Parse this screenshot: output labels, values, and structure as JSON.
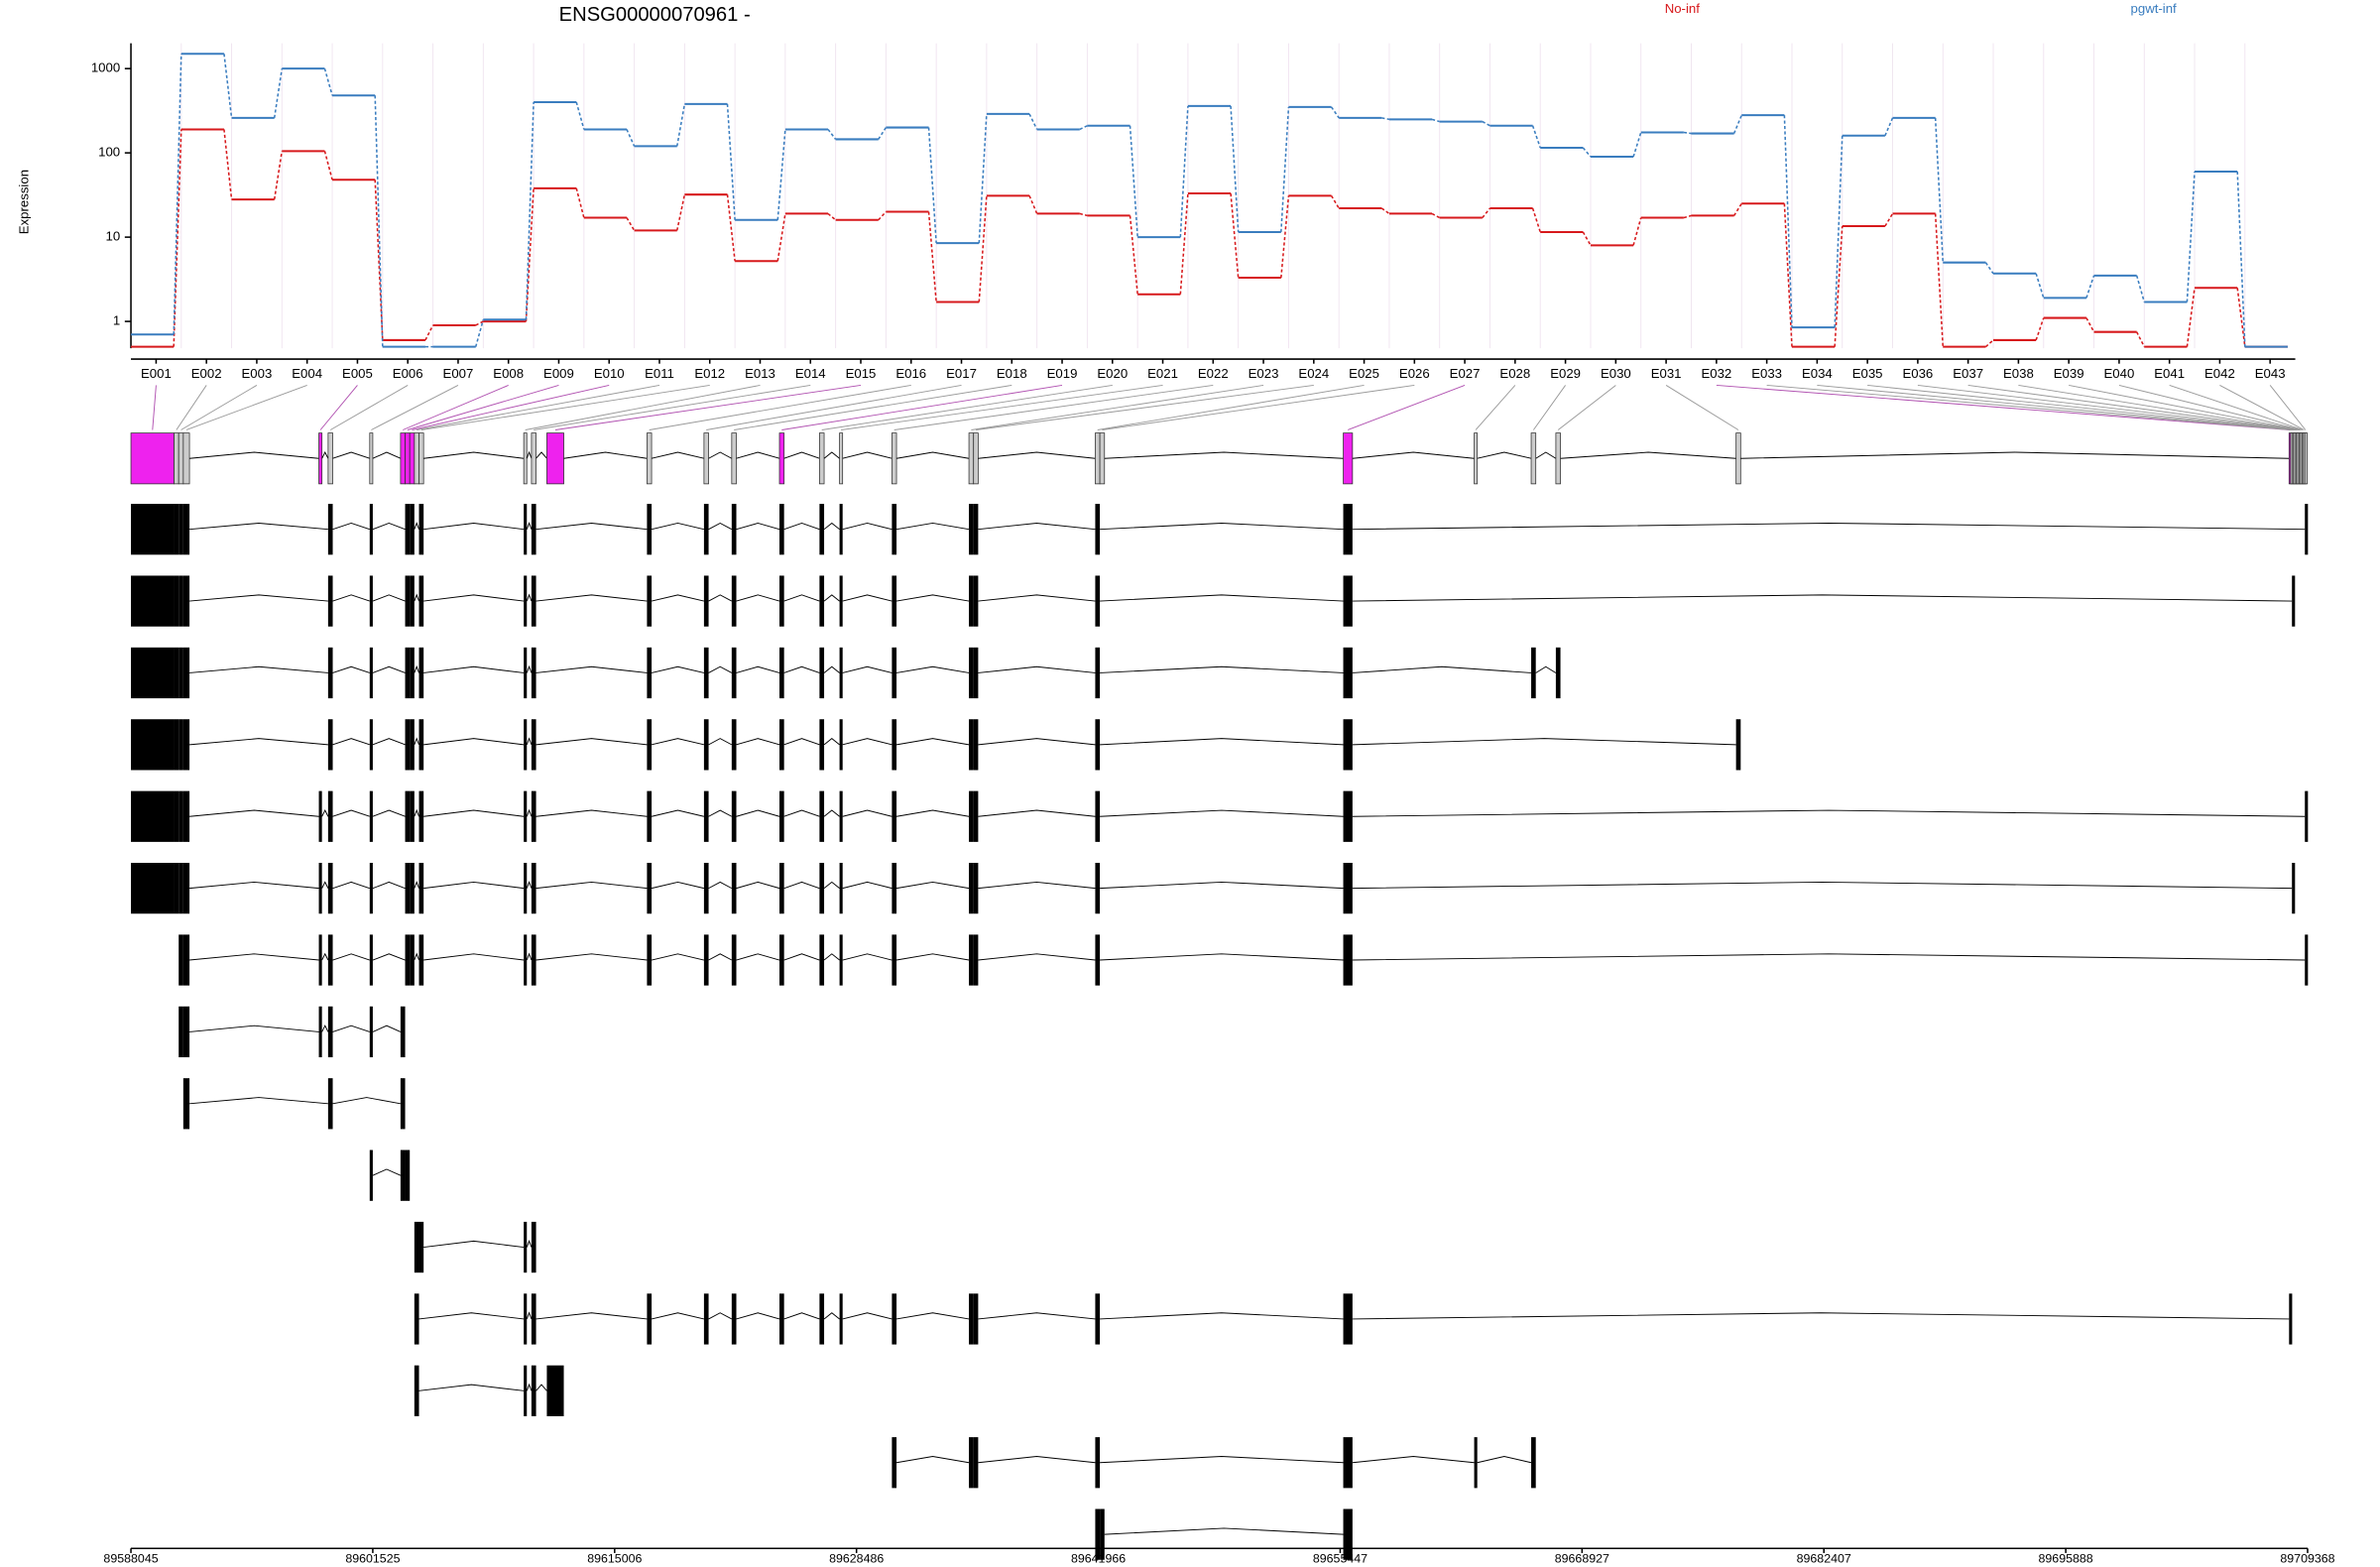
{
  "chart_data": {
    "type": "line",
    "title": "ENSG00000070961 -",
    "ylabel": "Expression",
    "log_scale": true,
    "categories": [
      "E001",
      "E002",
      "E003",
      "E004",
      "E005",
      "E006",
      "E007",
      "E008",
      "E009",
      "E010",
      "E011",
      "E012",
      "E013",
      "E014",
      "E015",
      "E016",
      "E017",
      "E018",
      "E019",
      "E020",
      "E021",
      "E022",
      "E023",
      "E024",
      "E025",
      "E026",
      "E027",
      "E028",
      "E029",
      "E030",
      "E031",
      "E032",
      "E033",
      "E034",
      "E035",
      "E036",
      "E037",
      "E038",
      "E039",
      "E040",
      "E041",
      "E042",
      "E043"
    ],
    "series": [
      {
        "name": "No-inf",
        "color": "#d7191c",
        "values": [
          0.5,
          190,
          28,
          105,
          48,
          0.6,
          0.9,
          1.0,
          38,
          17,
          12,
          32,
          5.2,
          19,
          16,
          20,
          1.7,
          31,
          19,
          18,
          2.1,
          33,
          3.3,
          31,
          22,
          19,
          17,
          22,
          11.5,
          8,
          17,
          18,
          25,
          0.5,
          13.5,
          19,
          0.5,
          0.6,
          1.1,
          0.75,
          0.5,
          2.5,
          0.5
        ]
      },
      {
        "name": "pgwt-inf",
        "color": "#3a7dbf",
        "values": [
          0.7,
          1500,
          260,
          1000,
          480,
          0.5,
          0.5,
          1.05,
          400,
          190,
          120,
          380,
          16,
          190,
          145,
          200,
          8.5,
          290,
          190,
          210,
          10,
          360,
          11.5,
          350,
          260,
          250,
          235,
          210,
          115,
          90,
          175,
          170,
          280,
          0.85,
          160,
          260,
          5,
          3.7,
          1.9,
          3.5,
          1.7,
          60,
          0.5
        ]
      }
    ],
    "ylim": [
      0.48,
      2000
    ],
    "yticks": [
      1,
      10,
      100,
      1000
    ],
    "gene_model": {
      "xlim": [
        89588045,
        89709368
      ],
      "xticks": [
        89588045,
        89601525,
        89615006,
        89628486,
        89641966,
        89655447,
        89668927,
        89682407,
        89695888,
        89709368
      ],
      "exon_starts": [
        89588045,
        89590449,
        89590707,
        89590964,
        89598520,
        89599035,
        89601353,
        89603071,
        89603328,
        89603586,
        89603843,
        89604101,
        89609939,
        89610369,
        89611227,
        89616808,
        89619985,
        89621530,
        89624192,
        89626424,
        89627541,
        89630460,
        89634753,
        89635010,
        89641793,
        89642051,
        89655617,
        89662915,
        89666092,
        89667466,
        89677511,
        89708335,
        89708415,
        89708495,
        89708575,
        89708655,
        89708735,
        89708815,
        89708895,
        89708975,
        89709055,
        89709135,
        89709215
      ],
      "exon_ends": [
        89590449,
        89590707,
        89590964,
        89591308,
        89598692,
        89599293,
        89601525,
        89603328,
        89603586,
        89603843,
        89604101,
        89604358,
        89610111,
        89610626,
        89612172,
        89617066,
        89620243,
        89621788,
        89624450,
        89626682,
        89627712,
        89630717,
        89635010,
        89635268,
        89642051,
        89642309,
        89656132,
        89663087,
        89666349,
        89667723,
        89677769,
        89708405,
        89708485,
        89708565,
        89708645,
        89708725,
        89708805,
        89708885,
        89708965,
        89709045,
        89709125,
        89709205,
        89709285
      ],
      "exon_colors": [
        "#ee22ee",
        "#cccccc",
        "#cccccc",
        "#cccccc",
        "#ee22ee",
        "#cccccc",
        "#cccccc",
        "#ee22ee",
        "#ee22ee",
        "#ee22ee",
        "#cccccc",
        "#cccccc",
        "#cccccc",
        "#cccccc",
        "#ee22ee",
        "#cccccc",
        "#cccccc",
        "#cccccc",
        "#ee22ee",
        "#cccccc",
        "#cccccc",
        "#cccccc",
        "#cccccc",
        "#cccccc",
        "#cccccc",
        "#cccccc",
        "#ee22ee",
        "#cccccc",
        "#cccccc",
        "#cccccc",
        "#cccccc",
        "#ee22ee",
        "#cccccc",
        "#cccccc",
        "#cccccc",
        "#cccccc",
        "#cccccc",
        "#cccccc",
        "#cccccc",
        "#cccccc",
        "#cccccc",
        "#cccccc",
        "#cccccc"
      ],
      "transcripts": [
        [
          0,
          1,
          2,
          3,
          5,
          6,
          8,
          9,
          11,
          12,
          13,
          15,
          16,
          17,
          18,
          19,
          20,
          21,
          22,
          23,
          24,
          26,
          42
        ],
        [
          0,
          1,
          2,
          3,
          5,
          6,
          8,
          9,
          11,
          12,
          13,
          15,
          16,
          17,
          18,
          19,
          20,
          21,
          22,
          23,
          24,
          26,
          33
        ],
        [
          0,
          1,
          2,
          3,
          5,
          6,
          8,
          9,
          11,
          12,
          13,
          15,
          16,
          17,
          18,
          19,
          20,
          21,
          22,
          23,
          24,
          26,
          28,
          29
        ],
        [
          0,
          1,
          2,
          3,
          5,
          6,
          8,
          9,
          11,
          12,
          13,
          15,
          16,
          17,
          18,
          19,
          20,
          21,
          22,
          23,
          24,
          26,
          30
        ],
        [
          0,
          1,
          2,
          3,
          4,
          5,
          6,
          8,
          9,
          11,
          12,
          13,
          15,
          16,
          17,
          18,
          19,
          20,
          21,
          22,
          23,
          24,
          26,
          42
        ],
        [
          0,
          1,
          2,
          3,
          4,
          5,
          6,
          8,
          9,
          11,
          12,
          13,
          15,
          16,
          17,
          18,
          19,
          20,
          21,
          22,
          23,
          24,
          26,
          33
        ],
        [
          2,
          3,
          4,
          5,
          6,
          8,
          9,
          11,
          12,
          13,
          15,
          16,
          17,
          18,
          19,
          20,
          21,
          22,
          23,
          24,
          26,
          42
        ],
        [
          2,
          3,
          4,
          5,
          6,
          7
        ],
        [
          3,
          5,
          7
        ],
        [
          6,
          7,
          8
        ],
        [
          10,
          11,
          12,
          13
        ],
        [
          10,
          12,
          13,
          15,
          16,
          17,
          18,
          19,
          20,
          21,
          22,
          23,
          24,
          26,
          31
        ],
        [
          10,
          12,
          13,
          14
        ],
        [
          21,
          22,
          23,
          24,
          26,
          27,
          28
        ],
        [
          24,
          25,
          26
        ]
      ]
    }
  }
}
